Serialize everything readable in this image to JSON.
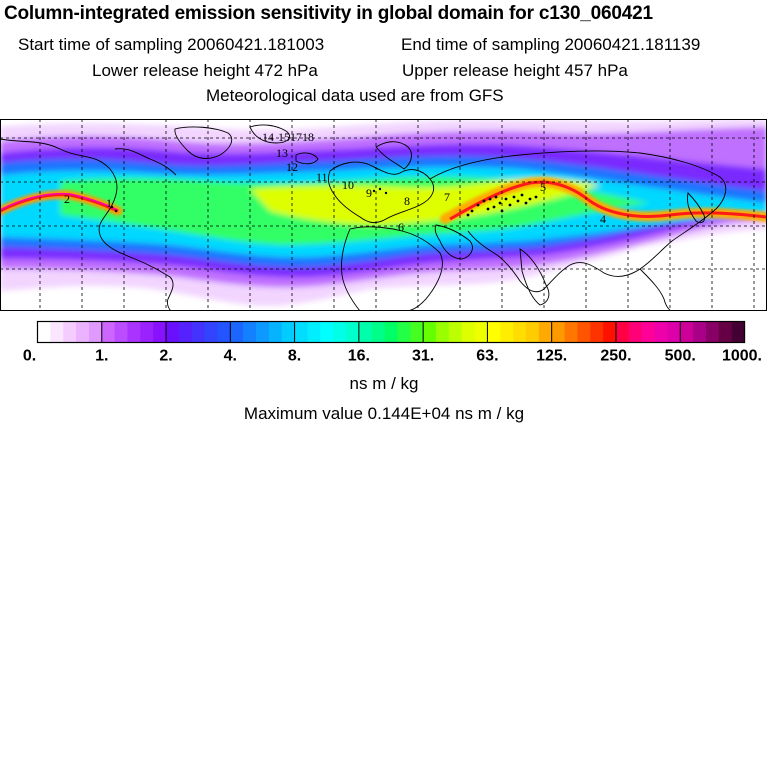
{
  "header": {
    "title": "Column-integrated emission sensitivity in global domain for c130_060421",
    "start_time": "Start time of sampling 20060421.181003",
    "end_time": "End time of sampling 20060421.181139",
    "lower_release": "Lower release height  472 hPa",
    "upper_release": "Upper release height  457 hPa",
    "met_data": "Meteorological data used are from GFS"
  },
  "map": {
    "description_colors": {
      "background": "#ffffff",
      "coastline": "#000000",
      "gridline": "#000000",
      "plume_core": "#ff1a1a",
      "plume_mid": "#ffcc00",
      "plume_body": "#33ff66",
      "plume_outer": "#00ccff",
      "plume_edge": "#7a2cff",
      "plume_faint": "#f0c8ff"
    },
    "trajectory_labels": [
      "1",
      "2",
      "3",
      "4",
      "5",
      "6",
      "7",
      "8",
      "9",
      "10",
      "11",
      "12",
      "13",
      "14",
      "15",
      "16",
      "17",
      "18"
    ],
    "grid": "dashed"
  },
  "colorbar": {
    "tick_labels": [
      "0.",
      "1.",
      "2.",
      "4.",
      "8.",
      "16.",
      "31.",
      "63.",
      "125.",
      "250.",
      "500.",
      "1000."
    ],
    "colors": [
      "#ffffff",
      "#fbe6ff",
      "#f4ccff",
      "#ebb3ff",
      "#e099ff",
      "#cc66ff",
      "#bb4cff",
      "#aa33ff",
      "#9922ff",
      "#8811ff",
      "#6a10ff",
      "#5522ff",
      "#4433ff",
      "#3344ff",
      "#2255ff",
      "#1a66ff",
      "#1380ff",
      "#0d99ff",
      "#06b3ff",
      "#00ccff",
      "#00ddff",
      "#00eeff",
      "#00ffff",
      "#00ffe6",
      "#00ffcc",
      "#00ffaa",
      "#00ff88",
      "#00ff66",
      "#22ff44",
      "#44ff22",
      "#66ff00",
      "#99ff00",
      "#bbff00",
      "#ddff00",
      "#eeff00",
      "#ffff00",
      "#ffee00",
      "#ffdd00",
      "#ffcc00",
      "#ffaa00",
      "#ff9900",
      "#ff7700",
      "#ff5500",
      "#ff3300",
      "#ff1100",
      "#ff0044",
      "#ff0077",
      "#ff0099",
      "#ee00aa",
      "#dd00aa",
      "#cc0099",
      "#aa0088",
      "#880066",
      "#660044",
      "#440033"
    ],
    "units": "ns m / kg"
  },
  "footer": {
    "max_value": "Maximum value  0.144E+04 ns m / kg"
  }
}
